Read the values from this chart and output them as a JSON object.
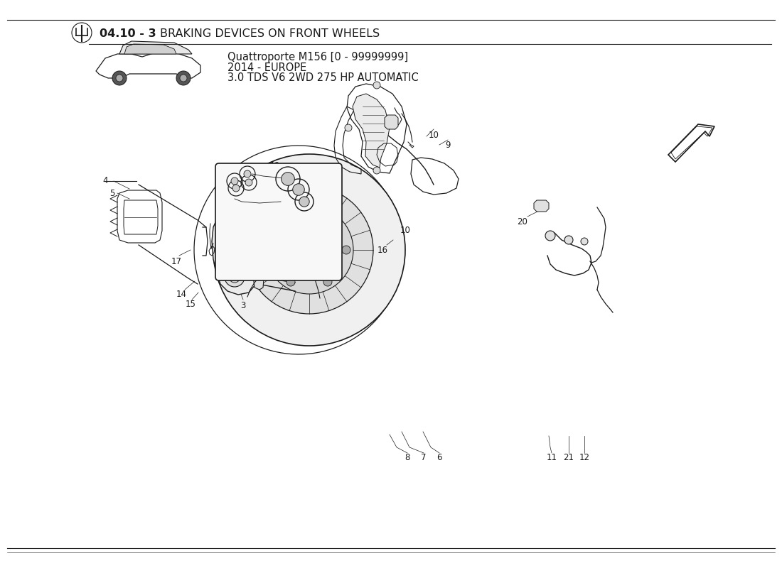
{
  "title_bold": "04.10 - 3",
  "title_regular": " BRAKING DEVICES ON FRONT WHEELS",
  "car_info_line1": "Quattroporte M156 [0 - 99999999]",
  "car_info_line2": "2014 - EUROPE",
  "car_info_line3": "3.0 TDS V6 2WD 275 HP AUTOMATIC",
  "bg_color": "#ffffff",
  "text_color": "#1a1a1a",
  "line_color": "#1a1a1a",
  "figsize": [
    11.0,
    8.0
  ],
  "dpi": 100
}
